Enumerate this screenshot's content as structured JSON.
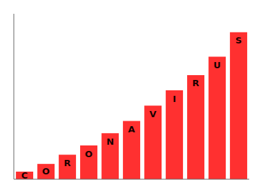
{
  "chart_data": {
    "type": "bar",
    "categories": [
      "C",
      "O",
      "R",
      "O",
      "N",
      "A",
      "V",
      "I",
      "R",
      "U",
      "S"
    ],
    "values": [
      0.05,
      0.1,
      0.16,
      0.22,
      0.3,
      0.38,
      0.48,
      0.58,
      0.68,
      0.8,
      0.96
    ],
    "color": "#ff3030",
    "ylim": [
      0,
      1.08
    ],
    "yticks": [],
    "tick_labels": false,
    "grid": false
  }
}
